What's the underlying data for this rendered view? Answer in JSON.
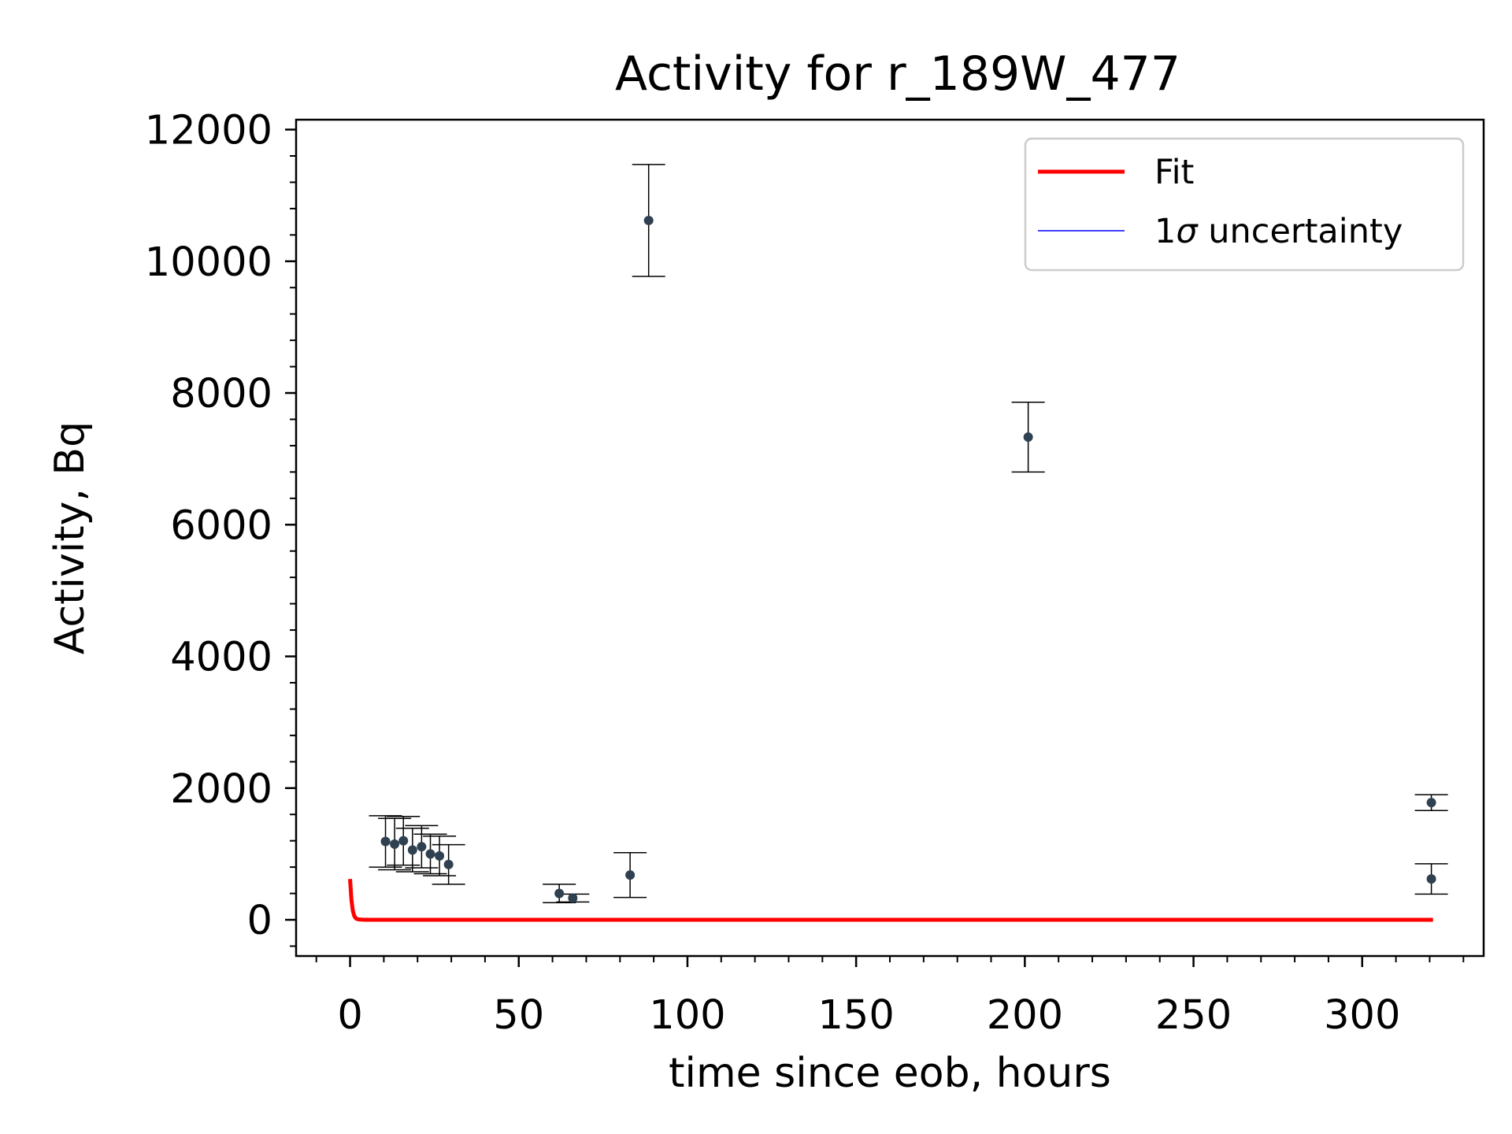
{
  "chart_data": {
    "type": "scatter",
    "title": "Activity for r_189W_477",
    "xlabel": "time since eob, hours",
    "ylabel": "Activity, Bq",
    "xlim": [
      -16,
      336
    ],
    "ylim": [
      -550,
      12150
    ],
    "x_ticks": [
      0,
      50,
      100,
      150,
      200,
      250,
      300
    ],
    "x_tick_labels": [
      "0",
      "50",
      "100",
      "150",
      "200",
      "250",
      "300"
    ],
    "y_ticks": [
      0,
      2000,
      4000,
      6000,
      8000,
      10000,
      12000
    ],
    "y_tick_labels": [
      "0",
      "2000",
      "4000",
      "6000",
      "8000",
      "10000",
      "12000"
    ],
    "x_minor_step": 10,
    "y_minor_step": 400,
    "grid": false,
    "legend": {
      "position": "top-right",
      "entries": [
        {
          "label": "Fit",
          "color": "#ff0000",
          "kind": "line-thick"
        },
        {
          "label": "1σ uncertainty",
          "label_prefix": "1",
          "label_symbol": "σ",
          "label_suffix": " uncertainty",
          "color": "#0000ff",
          "kind": "line-thin"
        }
      ]
    },
    "points": [
      {
        "x": 10.5,
        "y": 1190,
        "yerr": 390
      },
      {
        "x": 13.2,
        "y": 1150,
        "yerr": 390
      },
      {
        "x": 15.8,
        "y": 1200,
        "yerr": 370
      },
      {
        "x": 18.5,
        "y": 1060,
        "yerr": 330
      },
      {
        "x": 21.2,
        "y": 1110,
        "yerr": 320
      },
      {
        "x": 23.8,
        "y": 1000,
        "yerr": 300
      },
      {
        "x": 26.5,
        "y": 970,
        "yerr": 300
      },
      {
        "x": 29.2,
        "y": 840,
        "yerr": 300
      },
      {
        "x": 62.0,
        "y": 400,
        "yerr": 140
      },
      {
        "x": 66.0,
        "y": 330,
        "yerr": 60
      },
      {
        "x": 83.0,
        "y": 680,
        "yerr": 340
      },
      {
        "x": 88.5,
        "y": 10620,
        "yerr": 850
      },
      {
        "x": 201.0,
        "y": 7330,
        "yerr": 530
      },
      {
        "x": 320.5,
        "y": 1780,
        "yerr": 120
      },
      {
        "x": 320.5,
        "y": 620,
        "yerr": 230
      }
    ],
    "fit_line": {
      "x": [
        0,
        0.4,
        0.8,
        1.2,
        1.6,
        2.0,
        2.6,
        3.4,
        4.5,
        6.0,
        10,
        50,
        100,
        200,
        321
      ],
      "y": [
        620,
        300,
        140,
        65,
        30,
        15,
        6,
        2,
        0.5,
        0,
        0,
        0,
        0,
        0,
        0
      ]
    },
    "colors": {
      "fit": "#ff0000",
      "uncertainty": "#0000ff",
      "point": "#2f4050",
      "errorbar": "#000000",
      "axis": "#000000",
      "legend_border": "#cccccc"
    }
  }
}
